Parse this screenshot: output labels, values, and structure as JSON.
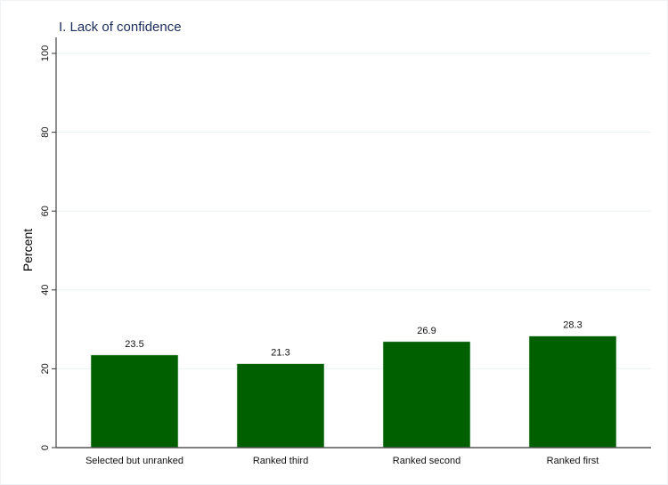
{
  "chart_data": {
    "type": "bar",
    "title": "I. Lack of confidence",
    "xlabel": "",
    "ylabel": "Percent",
    "ylim": [
      0,
      100
    ],
    "yticks": [
      0,
      20,
      40,
      60,
      80,
      100
    ],
    "grid": true,
    "categories": [
      "Selected but unranked",
      "Ranked third",
      "Ranked second",
      "Ranked first"
    ],
    "values": [
      23.5,
      21.3,
      26.9,
      28.3
    ],
    "value_labels": [
      "23.5",
      "21.3",
      "26.9",
      "28.3"
    ],
    "bar_color": "#006000"
  }
}
